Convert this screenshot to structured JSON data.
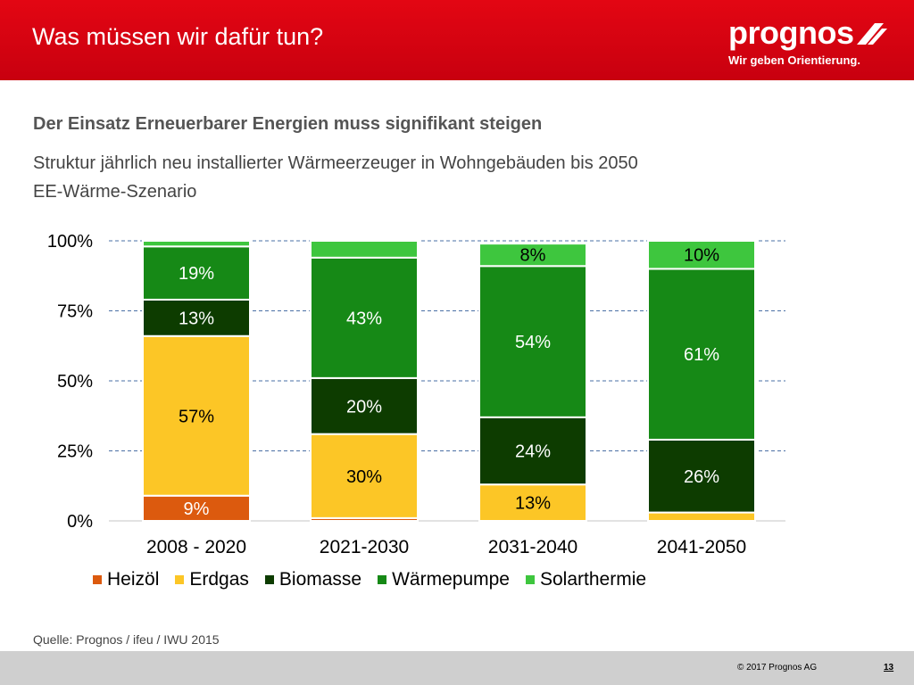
{
  "header": {
    "title": "Was müssen wir dafür tun?",
    "logo_text": "prognos",
    "logo_tagline": "Wir geben Orientierung."
  },
  "headline": "Der Einsatz Erneuerbarer Energien muss signifikant steigen",
  "subtitle_line1": "Struktur jährlich neu installierter Wärmeerzeuger in Wohngebäuden bis 2050",
  "subtitle_line2": "EE-Wärme-Szenario",
  "chart_data": {
    "type": "bar",
    "stacked": true,
    "percent_stacked": true,
    "categories": [
      "2008 - 2020",
      "2021-2030",
      "2031-2040",
      "2041-2050"
    ],
    "series": [
      {
        "name": "Heizöl",
        "color": "#dc5a0e",
        "values": [
          9,
          1,
          0,
          0
        ],
        "labels": [
          "9%",
          "",
          "",
          ""
        ]
      },
      {
        "name": "Erdgas",
        "color": "#fcc626",
        "values": [
          57,
          30,
          13,
          3
        ],
        "labels": [
          "57%",
          "30%",
          "13%",
          ""
        ]
      },
      {
        "name": "Biomasse",
        "color": "#0d3c00",
        "values": [
          13,
          20,
          24,
          26
        ],
        "labels": [
          "13%",
          "20%",
          "24%",
          "26%"
        ]
      },
      {
        "name": "Wärmepumpe",
        "color": "#168916",
        "values": [
          19,
          43,
          54,
          61
        ],
        "labels": [
          "19%",
          "43%",
          "54%",
          "61%"
        ]
      },
      {
        "name": "Solarthermie",
        "color": "#3ec63e",
        "values": [
          2,
          6,
          8,
          10
        ],
        "labels": [
          "",
          "",
          "8%",
          "10%"
        ]
      }
    ],
    "yticks": [
      "0%",
      "25%",
      "50%",
      "75%",
      "100%"
    ],
    "ylim": [
      0,
      100
    ],
    "grid": true,
    "legend_position": "bottom"
  },
  "source": "Quelle: Prognos / ifeu / IWU 2015",
  "footer": {
    "copyright": "© 2017 Prognos AG",
    "page": "13"
  }
}
